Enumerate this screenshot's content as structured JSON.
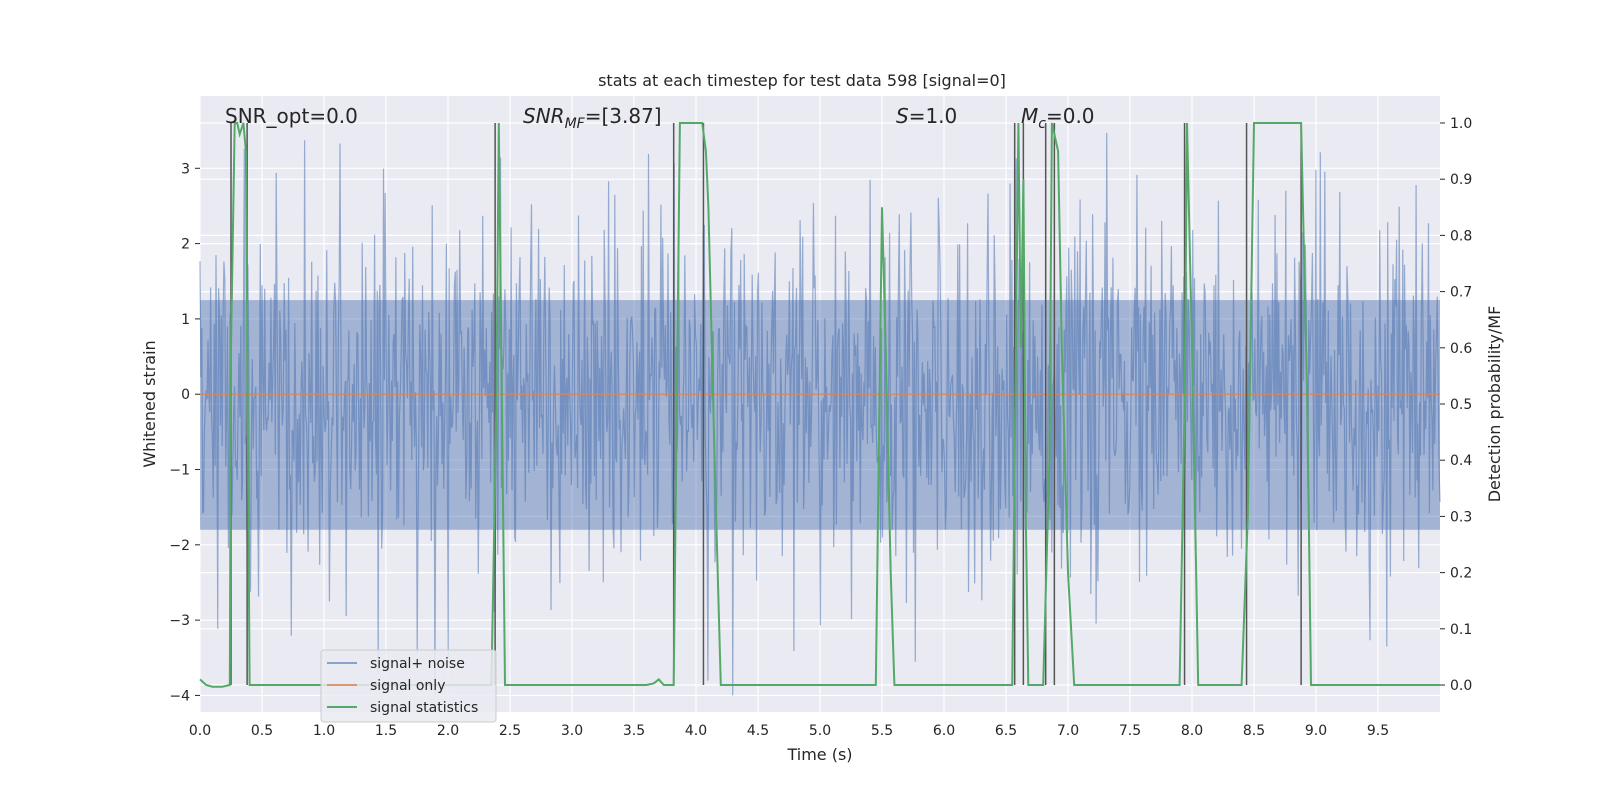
{
  "chart_data": {
    "type": "line",
    "title": "stats at each timestep for test data 598 [signal=0]",
    "xlabel": "Time (s)",
    "ylabel": "Whitened strain",
    "y2label": "Detection probability/MF",
    "xlim": [
      0,
      10
    ],
    "ylim": [
      -4.22,
      3.96
    ],
    "y2lim": [
      -0.048,
      1.048
    ],
    "xticks": [
      "0.0",
      "0.5",
      "1.0",
      "1.5",
      "2.0",
      "2.5",
      "3.0",
      "3.5",
      "4.0",
      "4.5",
      "5.0",
      "5.5",
      "6.0",
      "6.5",
      "7.0",
      "7.5",
      "8.0",
      "8.5",
      "9.0",
      "9.5"
    ],
    "yticks": [
      3,
      2,
      1,
      0,
      -1,
      -2,
      -3,
      -4
    ],
    "y2ticks": [
      "1.0",
      "0.9",
      "0.8",
      "0.7",
      "0.6",
      "0.5",
      "0.4",
      "0.3",
      "0.2",
      "0.1",
      "0.0"
    ],
    "grid": true,
    "legend_position": "lower-left",
    "annotations": {
      "snr_opt": "SNR_opt=0.0",
      "snr_mf_italic": "SNR",
      "snr_mf_sub": "MF",
      "snr_mf_value": "=[3.87]",
      "s_italic": "S",
      "s_value": "=1.0",
      "mc_italic": "M",
      "mc_sub": "c",
      "mc_value": "=0.0"
    },
    "series": [
      {
        "name": "signal+ noise",
        "color": "#4c72b0",
        "description": "dense whitened noise, approx. range -4 to 3.5",
        "seed": 598,
        "n_points": 1400
      },
      {
        "name": "signal only",
        "color": "#dd8452",
        "x": [
          0,
          10
        ],
        "y": [
          0,
          0
        ]
      },
      {
        "name": "signal statistics",
        "color": "#55a868",
        "axis": "right",
        "x": [
          0.0,
          0.05,
          0.1,
          0.18,
          0.24,
          0.25,
          0.28,
          0.3,
          0.32,
          0.35,
          0.37,
          0.4,
          0.42,
          0.5,
          2.35,
          2.39,
          2.41,
          2.43,
          2.46,
          2.5,
          2.6,
          3.6,
          3.66,
          3.7,
          3.74,
          3.78,
          3.82,
          3.87,
          4.05,
          4.08,
          4.1,
          4.15,
          4.2,
          4.3,
          5.45,
          5.5,
          5.53,
          5.57,
          5.6,
          5.7,
          6.55,
          6.6,
          6.62,
          6.64,
          6.66,
          6.68,
          6.8,
          6.85,
          6.87,
          6.92,
          6.95,
          7.0,
          7.05,
          7.1,
          7.9,
          7.94,
          7.96,
          8.0,
          8.05,
          8.1,
          8.4,
          8.45,
          8.5,
          8.88,
          8.9,
          8.93,
          8.96,
          9.0,
          9.1,
          10.0
        ],
        "y": [
          0.01,
          0.0,
          -0.003,
          -0.003,
          0.0,
          0.6,
          1.0,
          1.0,
          0.98,
          1.0,
          0.95,
          0.0,
          0.0,
          0.0,
          0.0,
          0.5,
          1.0,
          0.6,
          0.0,
          0.0,
          0.0,
          0.0,
          0.003,
          0.01,
          0.0,
          0.0,
          0.0,
          1.0,
          1.0,
          0.95,
          0.85,
          0.4,
          0.0,
          0.0,
          0.0,
          0.85,
          0.6,
          0.2,
          0.0,
          0.0,
          0.0,
          1.0,
          0.6,
          0.9,
          0.3,
          0.0,
          0.0,
          0.4,
          1.0,
          0.95,
          0.6,
          0.2,
          0.0,
          0.0,
          0.0,
          0.5,
          1.0,
          0.6,
          0.0,
          0.0,
          0.0,
          0.3,
          1.0,
          1.0,
          0.8,
          0.5,
          0.0,
          0.0,
          0.0,
          0.0
        ]
      }
    ],
    "vertical_markers": {
      "color": "#555555",
      "x": [
        0.25,
        0.38,
        2.38,
        3.82,
        4.06,
        6.57,
        6.64,
        6.82,
        6.89,
        7.94,
        8.44,
        8.88
      ]
    }
  }
}
